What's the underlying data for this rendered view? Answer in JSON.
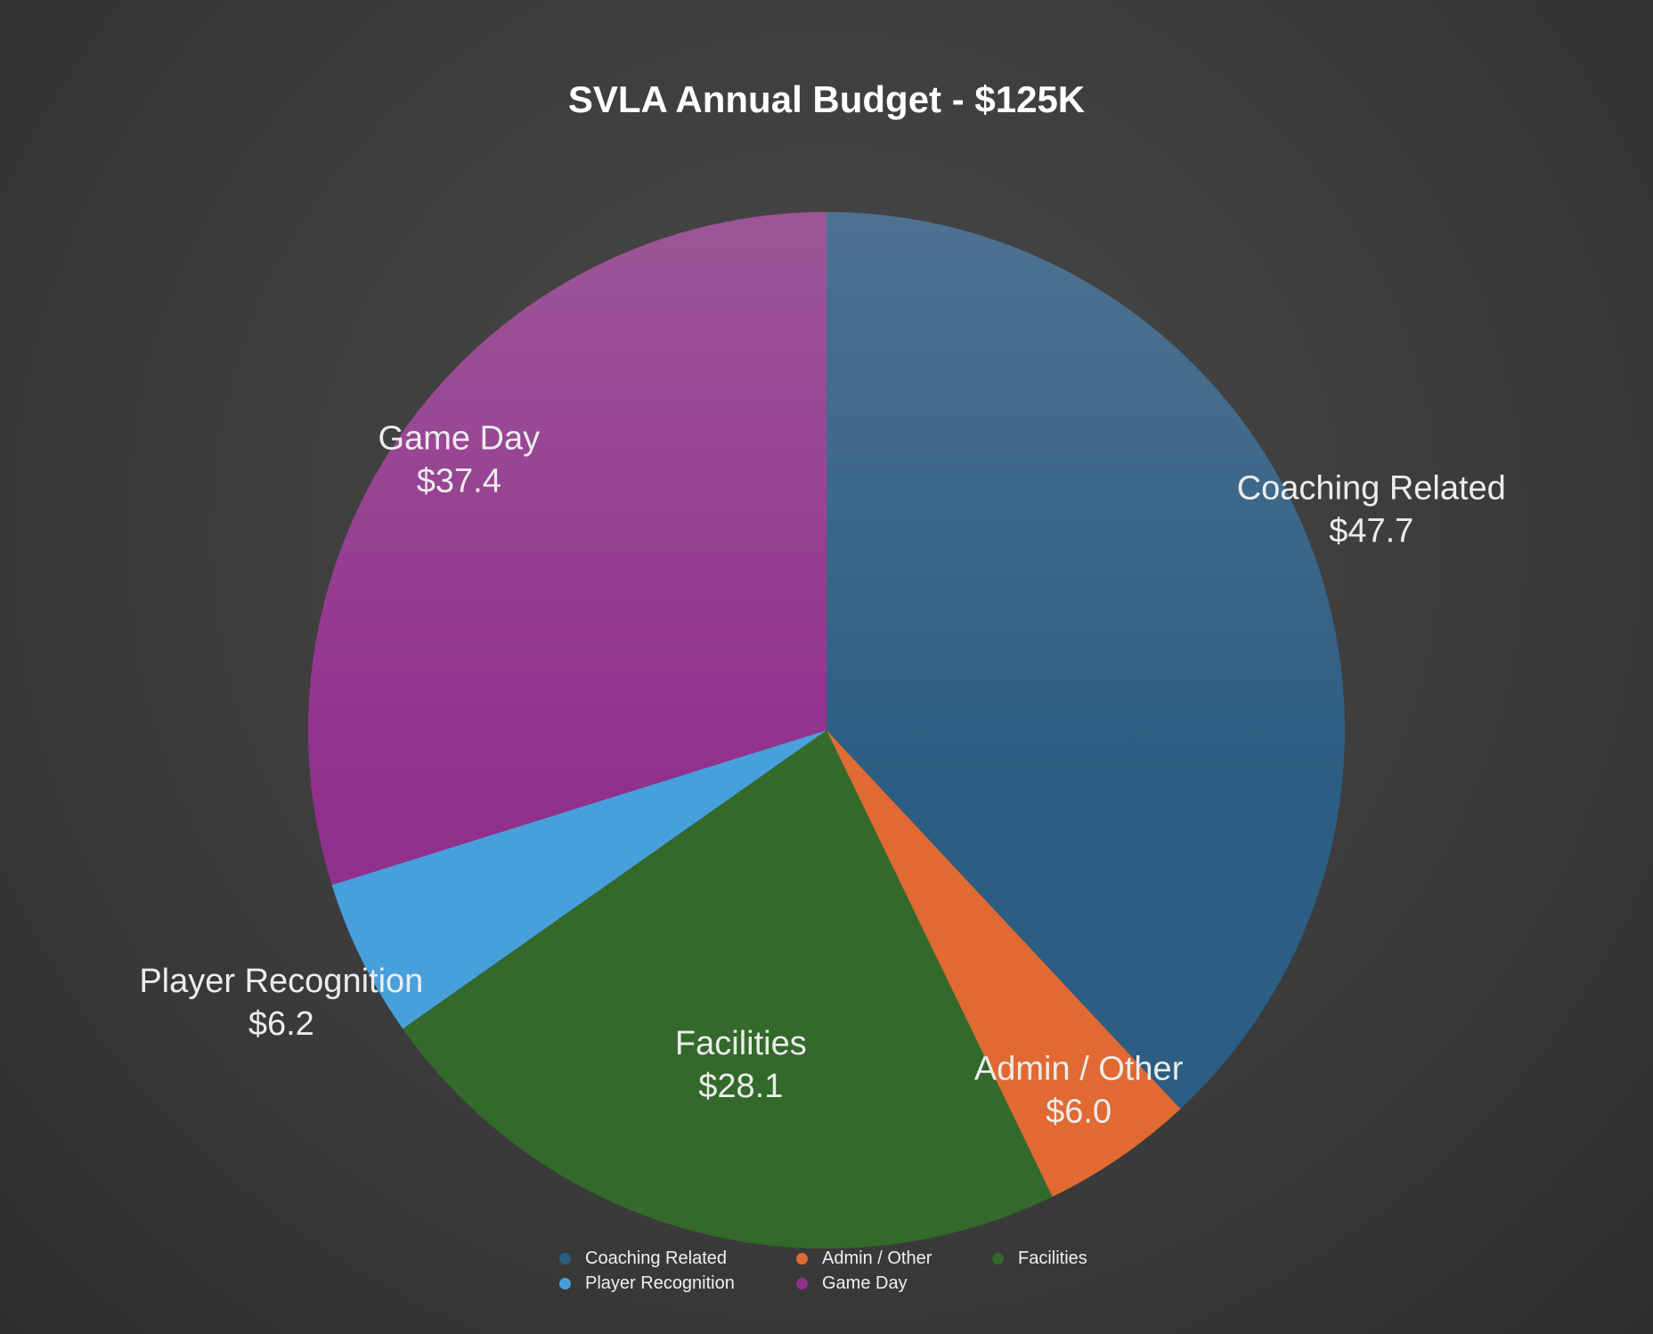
{
  "chart_data": {
    "type": "pie",
    "title": "SVLA Annual Budget - $125K",
    "start_angle_deg": 0,
    "direction": "clockwise",
    "legend_position": "bottom",
    "slices": [
      {
        "label": "Coaching Related",
        "value": 47.7,
        "value_label": "$47.7",
        "color": "#2c5d82",
        "highlight": "#4e7291"
      },
      {
        "label": "Admin / Other",
        "value": 6.0,
        "value_label": "$6.0",
        "color": "#e06a32",
        "highlight": "#e98f5c"
      },
      {
        "label": "Facilities",
        "value": 28.1,
        "value_label": "$28.1",
        "color": "#33692a",
        "highlight": "#4f7d47"
      },
      {
        "label": "Player Recognition",
        "value": 6.2,
        "value_label": "$6.2",
        "color": "#47a0dc",
        "highlight": "#5eaee2"
      },
      {
        "label": "Game Day",
        "value": 37.4,
        "value_label": "$37.4",
        "color": "#92308e",
        "highlight": "#9c5697"
      }
    ]
  }
}
